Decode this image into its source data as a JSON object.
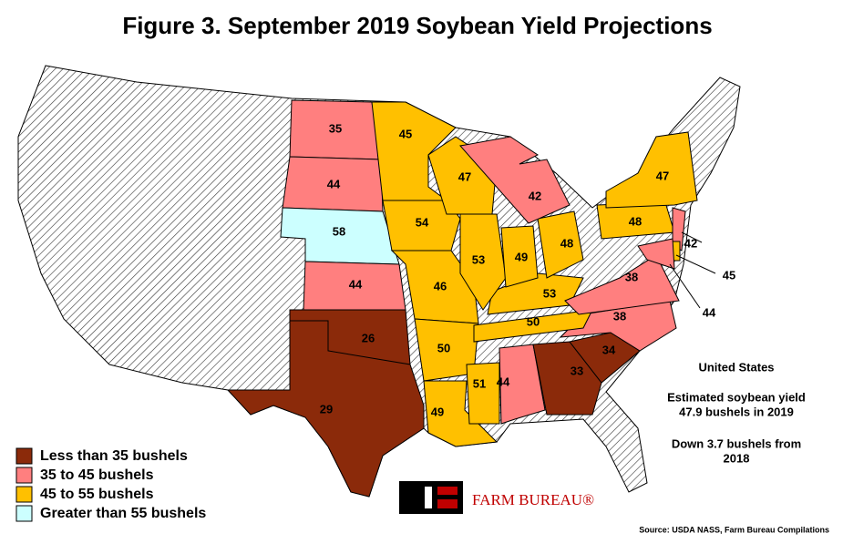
{
  "title": "Figure 3. September 2019 Soybean Yield Projections",
  "legend": [
    {
      "label": "Less than 35 bushels",
      "color": "#8b2a0a"
    },
    {
      "label": "35 to 45 bushels",
      "color": "#ff7f7f"
    },
    {
      "label": "45 to 55 bushels",
      "color": "#ffc000"
    },
    {
      "label": "Greater than 55 bushels",
      "color": "#ccffff"
    }
  ],
  "states": [
    {
      "value": 35,
      "color": "#ff7f7f"
    },
    {
      "value": 44,
      "color": "#ff7f7f"
    },
    {
      "value": 58,
      "color": "#ccffff"
    },
    {
      "value": 44,
      "color": "#ff7f7f"
    },
    {
      "value": 26,
      "color": "#8b2a0a"
    },
    {
      "value": 29,
      "color": "#8b2a0a"
    },
    {
      "value": 45,
      "color": "#ffc000"
    },
    {
      "value": 54,
      "color": "#ffc000"
    },
    {
      "value": 46,
      "color": "#ffc000"
    },
    {
      "value": 50,
      "color": "#ffc000"
    },
    {
      "value": 49,
      "color": "#ffc000"
    },
    {
      "value": 51,
      "color": "#ffc000"
    },
    {
      "value": 44,
      "color": "#ff7f7f"
    },
    {
      "value": 33,
      "color": "#8b2a0a"
    },
    {
      "value": 34,
      "color": "#8b2a0a"
    },
    {
      "value": 38,
      "color": "#ff7f7f"
    },
    {
      "value": 50,
      "color": "#ffc000"
    },
    {
      "value": 53,
      "color": "#ffc000"
    },
    {
      "value": 38,
      "color": "#ff7f7f"
    },
    {
      "value": 47,
      "color": "#ffc000"
    },
    {
      "value": 53,
      "color": "#ffc000"
    },
    {
      "value": 49,
      "color": "#ffc000"
    },
    {
      "value": 48,
      "color": "#ffc000"
    },
    {
      "value": 42,
      "color": "#ff7f7f"
    },
    {
      "value": 48,
      "color": "#ffc000"
    },
    {
      "value": 47,
      "color": "#ffc000"
    },
    {
      "value": 42,
      "color": "#ff7f7f"
    },
    {
      "value": 45,
      "color": "#ffc000"
    },
    {
      "value": 44,
      "color": "#ff7f7f"
    }
  ],
  "notes": [
    "United States",
    "Estimated soybean yield",
    "47.9 bushels in 2019",
    "Down  3.7 bushels from",
    "2018"
  ],
  "logo": "FARM BUREAU®",
  "source": "Source: USDA NASS, Farm Bureau Compilations"
}
